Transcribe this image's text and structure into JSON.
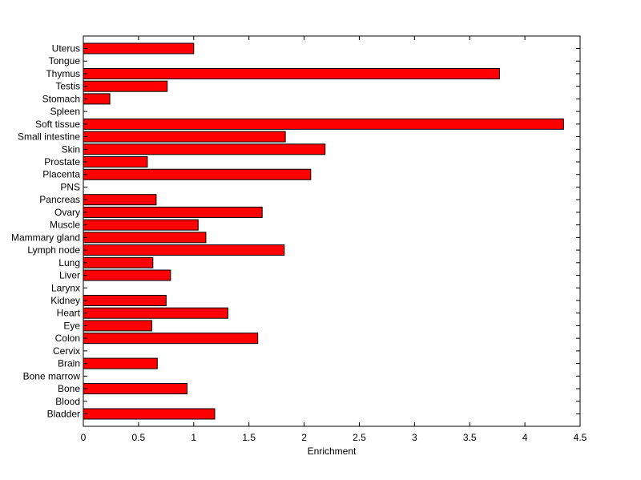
{
  "chart_data": {
    "type": "bar",
    "orientation": "horizontal",
    "categories": [
      "Uterus",
      "Tongue",
      "Thymus",
      "Testis",
      "Stomach",
      "Spleen",
      "Soft tissue",
      "Small intestine",
      "Skin",
      "Prostate",
      "Placenta",
      "PNS",
      "Pancreas",
      "Ovary",
      "Muscle",
      "Mammary gland",
      "Lymph node",
      "Lung",
      "Liver",
      "Larynx",
      "Kidney",
      "Heart",
      "Eye",
      "Colon",
      "Cervix",
      "Brain",
      "Bone marrow",
      "Bone",
      "Blood",
      "Bladder"
    ],
    "values": [
      1.0,
      0,
      3.77,
      0.76,
      0.24,
      0,
      4.35,
      1.83,
      2.19,
      0.58,
      2.06,
      0,
      0.66,
      1.62,
      1.04,
      1.11,
      1.82,
      0.63,
      0.79,
      0,
      0.75,
      1.31,
      0.62,
      1.58,
      0,
      0.67,
      0,
      0.94,
      0,
      1.19
    ],
    "xlabel": "Enrichment",
    "ylabel": "",
    "title": "",
    "xlim": [
      0,
      4.5
    ],
    "xticks": [
      "0",
      "0.5",
      "1",
      "1.5",
      "2",
      "2.5",
      "3",
      "3.5",
      "4",
      "4.5"
    ],
    "bar_color": "#ff0000",
    "grid": false
  }
}
